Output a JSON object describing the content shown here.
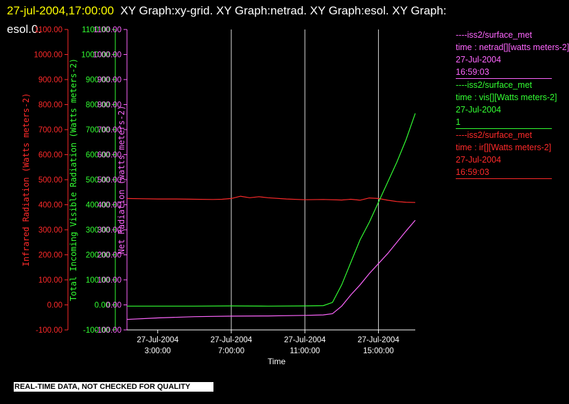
{
  "header": {
    "timestamp": "27-jul-2004,17:00:00",
    "graphs_text": "XY Graph:xy-grid.  XY Graph:netrad.  XY Graph:esol.  XY Graph:",
    "graphs_text_2": "esol.0."
  },
  "legend": [
    {
      "color": "#ff66ff",
      "lines": [
        "----iss2/surface_met",
        "time : netrad[][watts meters-2]",
        "27-Jul-2004",
        "16:59:03"
      ]
    },
    {
      "color": "#33ff33",
      "lines": [
        "----iss2/surface_met",
        "time : vis[][Watts meters-2]",
        "27-Jul-2004",
        "1"
      ]
    },
    {
      "color": "#ff2a2a",
      "lines": [
        "----iss2/surface_met",
        "time : ir[][Watts meters-2]",
        "27-Jul-2004",
        "16:59:03"
      ]
    }
  ],
  "disclaimer": "REAL-TIME DATA, NOT CHECKED FOR QUALITY",
  "chart_data": {
    "type": "line",
    "xlabel": "Time",
    "x_unit": "hours since 27-Jul-2004 00:00",
    "xlim": [
      1.33,
      17.0
    ],
    "x_ticks": [
      {
        "value": 3,
        "date": "27-Jul-2004",
        "time": "3:00:00"
      },
      {
        "value": 7,
        "date": "27-Jul-2004",
        "time": "7:00:00"
      },
      {
        "value": 11,
        "date": "27-Jul-2004",
        "time": "11:00:00"
      },
      {
        "value": 15,
        "date": "27-Jul-2004",
        "time": "15:00:00"
      }
    ],
    "vertical_gridlines_at": [
      7,
      11,
      15
    ],
    "ylim": [
      -100,
      1100
    ],
    "y_ticks": [
      -100,
      0,
      100,
      200,
      300,
      400,
      500,
      600,
      700,
      800,
      900,
      1000,
      1100
    ],
    "y_tick_labels": [
      "-100.00",
      "0.00",
      "100.00",
      "200.00",
      "300.00",
      "400.00",
      "500.00",
      "600.00",
      "700.00",
      "800.00",
      "900.00",
      "1000.00",
      "1100.00"
    ],
    "axes": [
      {
        "id": "ir",
        "label": "Infrared Radiation (Watts meters-2)",
        "color": "#ff2a2a"
      },
      {
        "id": "vis",
        "label": "Total Incoming Visible Radiation (Watts meters-2)",
        "color": "#33ff33"
      },
      {
        "id": "net",
        "label": "Net Radiation (watts meters-2)",
        "color": "#ff66ff"
      }
    ],
    "series": [
      {
        "axis": "ir",
        "color": "#ff2a2a",
        "x": [
          1.33,
          2,
          3,
          4,
          5,
          6,
          6.5,
          7,
          7.5,
          8,
          8.5,
          9,
          10,
          11,
          12,
          13,
          13.5,
          14,
          14.5,
          15,
          15.5,
          16,
          16.5,
          17
        ],
        "y": [
          425,
          424,
          423,
          423,
          422,
          421,
          422,
          425,
          434,
          428,
          432,
          428,
          423,
          420,
          421,
          419,
          422,
          418,
          427,
          425,
          418,
          413,
          410,
          409
        ]
      },
      {
        "axis": "vis",
        "color": "#33ff33",
        "x": [
          1.33,
          3,
          5,
          7,
          9,
          11,
          12,
          12.5,
          13,
          13.5,
          14,
          14.5,
          15,
          15.5,
          16,
          16.5,
          17
        ],
        "y": [
          -5,
          -5,
          -5,
          -4,
          -5,
          -4,
          -3,
          10,
          80,
          170,
          260,
          330,
          410,
          490,
          570,
          660,
          765
        ]
      },
      {
        "axis": "net",
        "color": "#ff66ff",
        "x": [
          1.33,
          3,
          5,
          7,
          9,
          11,
          12,
          12.5,
          13,
          13.5,
          14,
          14.5,
          15,
          15.5,
          16,
          16.5,
          17
        ],
        "y": [
          -58,
          -52,
          -47,
          -45,
          -44,
          -42,
          -40,
          -35,
          -5,
          40,
          80,
          125,
          165,
          205,
          250,
          295,
          338
        ]
      }
    ]
  }
}
